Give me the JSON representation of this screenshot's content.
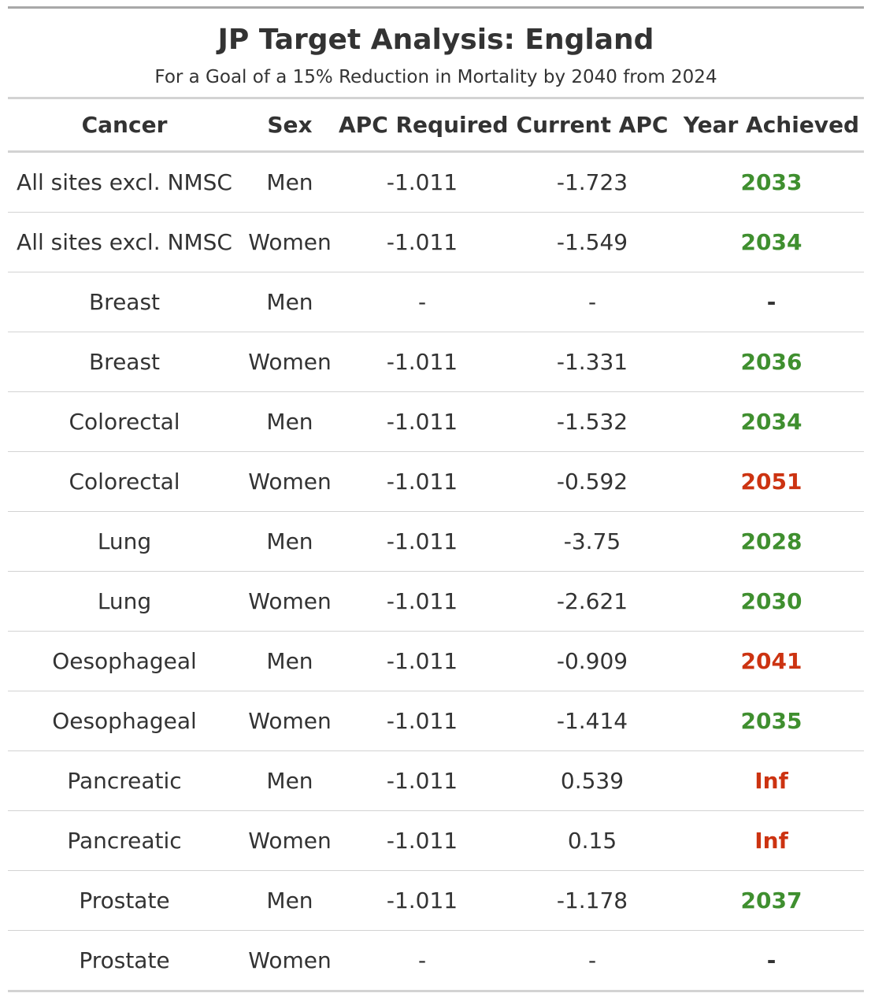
{
  "title": "JP Target Analysis: England",
  "subtitle": "For a Goal of a 15% Reduction in Mortality by 2040 from 2024",
  "columns": [
    "Cancer",
    "Sex",
    "APC Required",
    "Current APC",
    "Year Achieved"
  ],
  "colors": {
    "achieved_on_time": "#3f8f2f",
    "not_achieved": "#cc3311"
  },
  "rows": [
    {
      "cancer": "All sites excl. NMSC",
      "sex": "Men",
      "apc_required": "-1.011",
      "current_apc": "-1.723",
      "year": "2033",
      "status": "good"
    },
    {
      "cancer": "All sites excl. NMSC",
      "sex": "Women",
      "apc_required": "-1.011",
      "current_apc": "-1.549",
      "year": "2034",
      "status": "good"
    },
    {
      "cancer": "Breast",
      "sex": "Men",
      "apc_required": "-",
      "current_apc": "-",
      "year": "-",
      "status": "none"
    },
    {
      "cancer": "Breast",
      "sex": "Women",
      "apc_required": "-1.011",
      "current_apc": "-1.331",
      "year": "2036",
      "status": "good"
    },
    {
      "cancer": "Colorectal",
      "sex": "Men",
      "apc_required": "-1.011",
      "current_apc": "-1.532",
      "year": "2034",
      "status": "good"
    },
    {
      "cancer": "Colorectal",
      "sex": "Women",
      "apc_required": "-1.011",
      "current_apc": "-0.592",
      "year": "2051",
      "status": "bad"
    },
    {
      "cancer": "Lung",
      "sex": "Men",
      "apc_required": "-1.011",
      "current_apc": "-3.75",
      "year": "2028",
      "status": "good"
    },
    {
      "cancer": "Lung",
      "sex": "Women",
      "apc_required": "-1.011",
      "current_apc": "-2.621",
      "year": "2030",
      "status": "good"
    },
    {
      "cancer": "Oesophageal",
      "sex": "Men",
      "apc_required": "-1.011",
      "current_apc": "-0.909",
      "year": "2041",
      "status": "bad"
    },
    {
      "cancer": "Oesophageal",
      "sex": "Women",
      "apc_required": "-1.011",
      "current_apc": "-1.414",
      "year": "2035",
      "status": "good"
    },
    {
      "cancer": "Pancreatic",
      "sex": "Men",
      "apc_required": "-1.011",
      "current_apc": "0.539",
      "year": "Inf",
      "status": "bad"
    },
    {
      "cancer": "Pancreatic",
      "sex": "Women",
      "apc_required": "-1.011",
      "current_apc": "0.15",
      "year": "Inf",
      "status": "bad"
    },
    {
      "cancer": "Prostate",
      "sex": "Men",
      "apc_required": "-1.011",
      "current_apc": "-1.178",
      "year": "2037",
      "status": "good"
    },
    {
      "cancer": "Prostate",
      "sex": "Women",
      "apc_required": "-",
      "current_apc": "-",
      "year": "-",
      "status": "none"
    }
  ]
}
